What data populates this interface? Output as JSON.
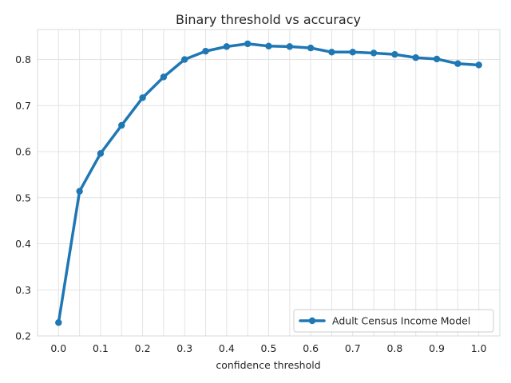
{
  "chart_data": {
    "type": "line",
    "title": "Binary threshold vs accuracy",
    "xlabel": "confidence threshold",
    "ylabel": "",
    "xlim": [
      -0.05,
      1.05
    ],
    "ylim": [
      0.2,
      0.865
    ],
    "xticks": [
      "0.0",
      "0.1",
      "0.2",
      "0.3",
      "0.4",
      "0.5",
      "0.6",
      "0.7",
      "0.8",
      "0.9",
      "1.0"
    ],
    "yticks": [
      "0.2",
      "0.3",
      "0.4",
      "0.5",
      "0.6",
      "0.7",
      "0.8"
    ],
    "grid": true,
    "legend_position": "lower-right",
    "series": [
      {
        "name": "Adult Census Income Model",
        "color": "#1f77b4",
        "x": [
          0.0,
          0.05,
          0.1,
          0.15,
          0.2,
          0.25,
          0.3,
          0.35,
          0.4,
          0.45,
          0.5,
          0.55,
          0.6,
          0.65,
          0.7,
          0.75,
          0.8,
          0.85,
          0.9,
          0.95,
          1.0
        ],
        "y": [
          0.229,
          0.514,
          0.596,
          0.657,
          0.717,
          0.762,
          0.8,
          0.818,
          0.828,
          0.834,
          0.829,
          0.828,
          0.825,
          0.816,
          0.816,
          0.814,
          0.811,
          0.804,
          0.801,
          0.791,
          0.788
        ]
      }
    ]
  }
}
